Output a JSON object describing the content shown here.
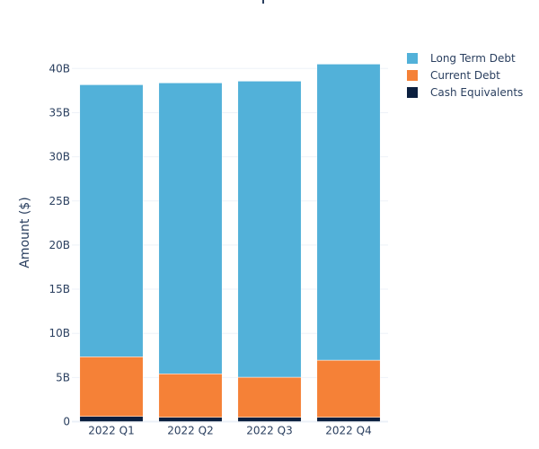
{
  "chart_data": {
    "type": "bar",
    "barmode": "stack",
    "title": "",
    "xlabel": "",
    "ylabel": "Amount ($)",
    "categories": [
      "2022 Q1",
      "2022 Q2",
      "2022 Q3",
      "2022 Q4"
    ],
    "ylim": [
      0,
      41
    ],
    "yticks": [
      0,
      5,
      10,
      15,
      20,
      25,
      30,
      35,
      40
    ],
    "ytick_labels": [
      "0",
      "5B",
      "10B",
      "15B",
      "20B",
      "25B",
      "30B",
      "35B",
      "40B"
    ],
    "value_unit": "billions USD",
    "grid": true,
    "legend_position": "top-right",
    "series": [
      {
        "name": "Cash Equivalents",
        "color": "#0b1f3f",
        "values": [
          0.59,
          0.49,
          0.49,
          0.49
        ]
      },
      {
        "name": "Current Debt",
        "color": "#f58137",
        "values": [
          6.75,
          4.92,
          4.54,
          6.47
        ]
      },
      {
        "name": "Long Term Debt",
        "color": "#52b1d9",
        "values": [
          30.82,
          32.96,
          33.54,
          33.54
        ]
      }
    ],
    "legend_order": [
      "Long Term Debt",
      "Current Debt",
      "Cash Equivalents"
    ]
  }
}
